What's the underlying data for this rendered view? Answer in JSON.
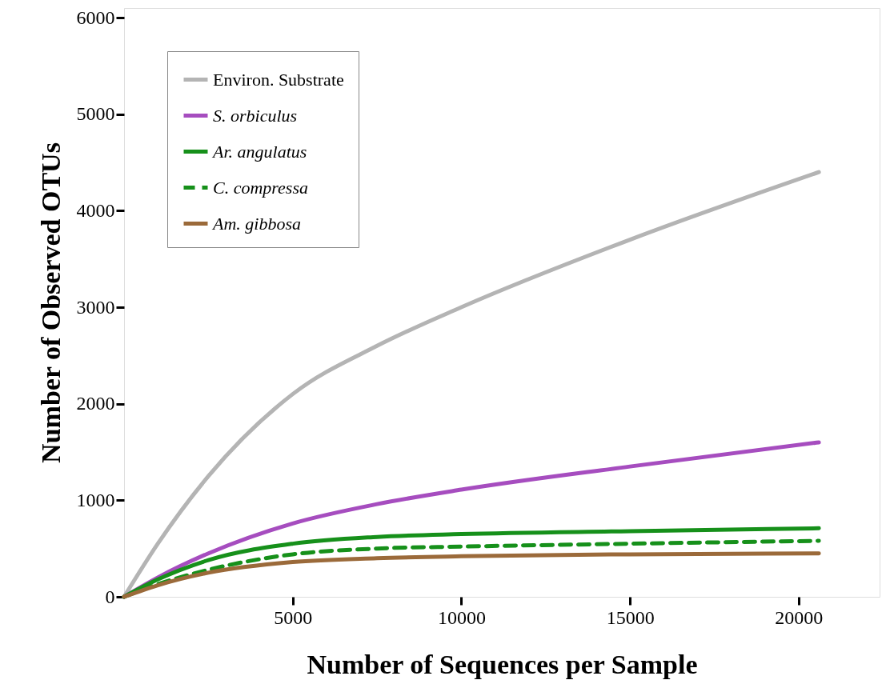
{
  "chart_data": {
    "type": "line",
    "xlabel": "Number of Sequences per Sample",
    "ylabel": "Number of Observed OTUs",
    "xlim": [
      0,
      22400
    ],
    "ylim": [
      0,
      6100
    ],
    "xticks": [
      5000,
      10000,
      15000,
      20000
    ],
    "yticks": [
      0,
      1000,
      2000,
      3000,
      4000,
      5000,
      6000
    ],
    "grid": false,
    "legend": "top left",
    "marker": "none",
    "series": [
      {
        "name": "Environ. Substrate",
        "color": "#b4b4b4",
        "line_style": "solid",
        "x": [
          0,
          1000,
          2500,
          5000,
          7500,
          10000,
          15000,
          20600
        ],
        "values": [
          0,
          550,
          1250,
          2100,
          2600,
          3000,
          3700,
          4400
        ]
      },
      {
        "name": "S. orbiculus",
        "color": "#a64dbf",
        "line_style": "solid",
        "x": [
          0,
          1000,
          2500,
          5000,
          7500,
          10000,
          15000,
          20600
        ],
        "values": [
          0,
          200,
          450,
          760,
          960,
          1110,
          1350,
          1600
        ]
      },
      {
        "name": "Ar. angulatus",
        "color": "#16901a",
        "line_style": "solid",
        "x": [
          0,
          1000,
          2500,
          5000,
          7500,
          10000,
          15000,
          20600
        ],
        "values": [
          0,
          180,
          380,
          550,
          620,
          650,
          680,
          710
        ]
      },
      {
        "name": "C. compressa",
        "color": "#16901a",
        "line_style": "dashed",
        "x": [
          0,
          1000,
          2500,
          5000,
          7500,
          10000,
          15000,
          20600
        ],
        "values": [
          0,
          130,
          280,
          440,
          500,
          520,
          550,
          580
        ]
      },
      {
        "name": "Am. gibbosa",
        "color": "#9b6a3a",
        "line_style": "solid",
        "x": [
          0,
          1000,
          2500,
          5000,
          7500,
          10000,
          15000,
          20600
        ],
        "values": [
          0,
          120,
          250,
          360,
          400,
          420,
          440,
          450
        ]
      }
    ]
  }
}
